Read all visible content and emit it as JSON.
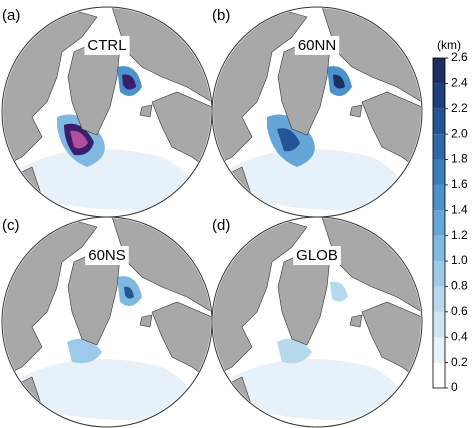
{
  "panels": [
    {
      "label": "(a)",
      "title": "CTRL"
    },
    {
      "label": "(b)",
      "title": "60NN"
    },
    {
      "label": "(c)",
      "title": "60NS"
    },
    {
      "label": "(d)",
      "title": "GLOB"
    }
  ],
  "colorbar": {
    "label": "(km)",
    "lim": [
      0,
      2.6
    ],
    "ticks": [
      0,
      0.2,
      0.4,
      0.6,
      0.8,
      {
        "value": 1,
        "label": "1.0"
      },
      1.2,
      1.4,
      1.6,
      1.8,
      {
        "value": 2,
        "label": "2.0"
      },
      2.2,
      2.4,
      2.6
    ],
    "colors": [
      "#ffffff",
      "#e6f1f9",
      "#cfe4f3",
      "#b8d8ee",
      "#9ccae8",
      "#7fb8e0",
      "#64a6d7",
      "#4b92cc",
      "#3a7dbd",
      "#2d68aa",
      "#245495",
      "#1e417c",
      "#1b2f62"
    ]
  }
}
